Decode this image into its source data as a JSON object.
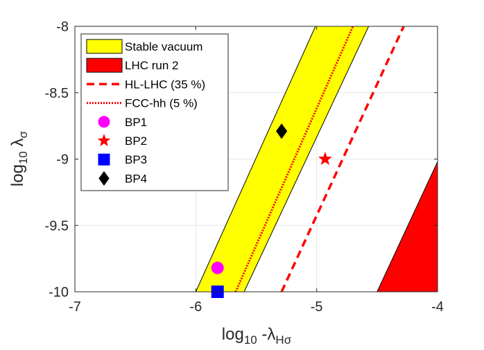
{
  "chart_data": {
    "type": "region-plot",
    "xlabel": {
      "main": "log",
      "sub": "10",
      "mid": " -λ",
      "sub2": "Hσ"
    },
    "ylabel": {
      "main": "log",
      "sub": "10",
      "mid": " λ",
      "sub2": "σ"
    },
    "xlim": [
      -7,
      -4
    ],
    "ylim": [
      -10,
      -8
    ],
    "x_ticks": [
      -7,
      -6,
      -5,
      -4
    ],
    "x_tick_labels": [
      "-7",
      "-6",
      "-5",
      "-4"
    ],
    "y_ticks": [
      -10,
      -9.5,
      -9,
      -8.5,
      -8
    ],
    "y_tick_labels": [
      "-10",
      "-9.5",
      "-9",
      "-8.5",
      "-8"
    ],
    "grid": true,
    "legend_position": "top-left",
    "regions": [
      {
        "name": "Stable vacuum",
        "color": "#ffff00",
        "edge": "#000000",
        "polygon": [
          [
            -6.0,
            -10
          ],
          [
            -5.6,
            -10
          ],
          [
            -4.57,
            -8
          ],
          [
            -5.01,
            -8
          ]
        ]
      },
      {
        "name": "LHC run 2",
        "color": "#ff0000",
        "edge": "#000000",
        "polygon": [
          [
            -4.5,
            -10
          ],
          [
            -4.0,
            -10
          ],
          [
            -4.0,
            -9.02
          ]
        ]
      }
    ],
    "lines": [
      {
        "name": "HL-LHC (35 %)",
        "color": "#ff0000",
        "style": "dashed",
        "points": [
          [
            -5.29,
            -10
          ],
          [
            -4.28,
            -8
          ]
        ]
      },
      {
        "name": "FCC-hh (5 %)",
        "color": "#ff0000",
        "style": "dotted",
        "points": [
          [
            -5.67,
            -10
          ],
          [
            -4.7,
            -8
          ]
        ]
      }
    ],
    "points": [
      {
        "name": "BP1",
        "marker": "circle",
        "color": "#ff00ff",
        "x": -5.82,
        "y": -9.82
      },
      {
        "name": "BP2",
        "marker": "star",
        "color": "#ff0000",
        "x": -4.93,
        "y": -9.0
      },
      {
        "name": "BP3",
        "marker": "square",
        "color": "#0000ff",
        "x": -5.82,
        "y": -10.0
      },
      {
        "name": "BP4",
        "marker": "diamond",
        "color": "#000000",
        "x": -5.29,
        "y": -8.79
      }
    ],
    "legend": [
      {
        "label": "Stable vacuum",
        "kind": "patch",
        "color": "#ffff00"
      },
      {
        "label": "LHC run 2",
        "kind": "patch",
        "color": "#ff0000"
      },
      {
        "label": "HL-LHC (35 %)",
        "kind": "line",
        "color": "#ff0000",
        "style": "dashed"
      },
      {
        "label": "FCC-hh (5 %)",
        "kind": "line",
        "color": "#ff0000",
        "style": "dotted"
      },
      {
        "label": "BP1",
        "kind": "marker",
        "marker": "circle",
        "color": "#ff00ff"
      },
      {
        "label": "BP2",
        "kind": "marker",
        "marker": "star",
        "color": "#ff0000"
      },
      {
        "label": "BP3",
        "kind": "marker",
        "marker": "square",
        "color": "#0000ff"
      },
      {
        "label": "BP4",
        "kind": "marker",
        "marker": "diamond",
        "color": "#000000"
      }
    ]
  }
}
